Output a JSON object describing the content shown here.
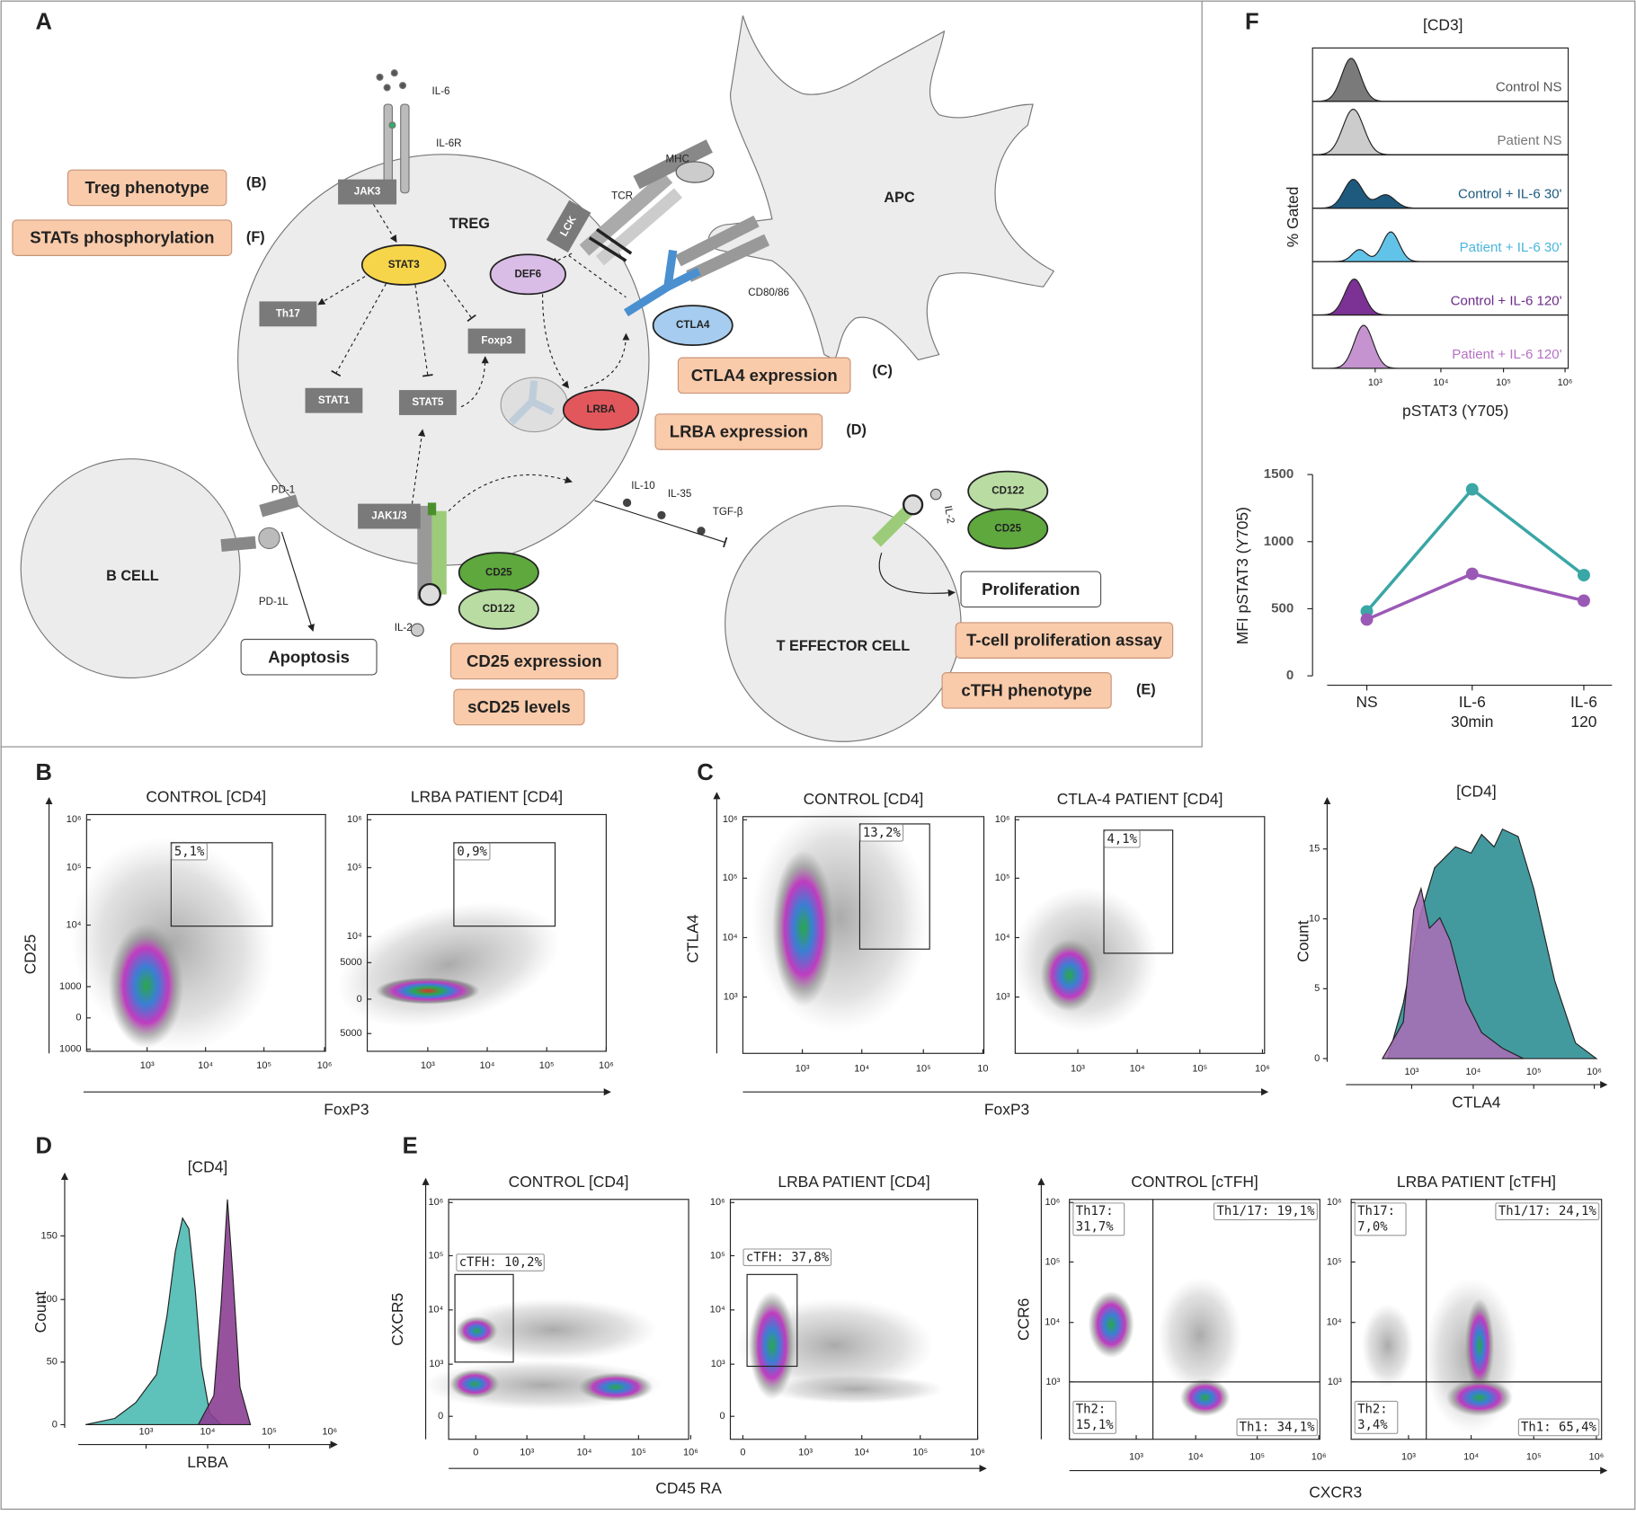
{
  "panels": {
    "A": {
      "label": "A",
      "cells": [
        "TREG",
        "APC",
        "B CELL",
        "T EFFECTOR CELL"
      ],
      "molecules": [
        "IL-6",
        "IL-6R",
        "JAK3",
        "STAT3",
        "Th17",
        "Foxp3",
        "STAT1",
        "STAT5",
        "JAK1/3",
        "LCK",
        "DEF6",
        "MHC",
        "TCR",
        "CD80/86",
        "CTLA4",
        "LRBA",
        "CD25",
        "CD122",
        "IL-2",
        "PD-1",
        "PD-1L",
        "IL-10",
        "IL-35",
        "TGF-β",
        "CD122",
        "CD25",
        "IL-2"
      ],
      "assays": [
        {
          "text": "Treg phenotype",
          "ref": "(B)"
        },
        {
          "text": "STATs phosphorylation",
          "ref": "(F)"
        },
        {
          "text": "CTLA4 expression",
          "ref": "(C)"
        },
        {
          "text": "LRBA expression",
          "ref": "(D)"
        },
        {
          "text": "CD25 expression"
        },
        {
          "text": "sCD25 levels"
        },
        {
          "text": "T-cell proliferation assay"
        },
        {
          "text": "cTFH phenotype",
          "ref": "(E)"
        }
      ],
      "outcomes": [
        "Apoptosis",
        "Proliferation"
      ]
    },
    "B": {
      "label": "B",
      "ylabel": "CD25",
      "xlabel": "FoxP3",
      "plots": [
        {
          "title": "CONTROL [CD4]",
          "yticks": [
            "10⁶",
            "10⁵",
            "10⁴",
            1000,
            0,
            1000
          ],
          "xticks": [
            "10³",
            "10⁴",
            "10⁵",
            "10⁶"
          ],
          "gates": [
            "5,1%"
          ]
        },
        {
          "title": "LRBA PATIENT [CD4]",
          "yticks": [
            "10⁶",
            "10⁵",
            "10⁴",
            5000,
            0,
            5000
          ],
          "xticks": [
            "10³",
            "10⁴",
            "10⁵",
            "10⁶"
          ],
          "gates": [
            "0,9%"
          ]
        }
      ]
    },
    "C": {
      "label": "C",
      "ylabel": "CTLA4",
      "xlabel": "FoxP3",
      "plots": [
        {
          "title": "CONTROL [CD4]",
          "yticks": [
            "10⁶",
            "10⁵",
            "10⁴",
            "10³"
          ],
          "xticks": [
            "10³",
            "10⁴",
            "10⁵",
            10
          ],
          "gates": [
            "13,2%"
          ]
        },
        {
          "title": "CTLA-4 PATIENT [CD4]",
          "yticks": [
            "10⁶",
            "10⁵",
            "10⁴",
            "10³"
          ],
          "xticks": [
            "10³",
            "10⁴",
            "10⁵",
            "10⁶"
          ],
          "gates": [
            "4,1%"
          ]
        }
      ],
      "histogram": {
        "title": "[CD4]",
        "yticks": [
          0,
          5,
          10,
          15
        ],
        "xticks": [
          "10³",
          "10⁴",
          "10⁵",
          "10⁶"
        ],
        "ylabel": "Count",
        "xlabel": "CTLA4",
        "colors": [
          "#2d8f95",
          "#a66fb5"
        ]
      }
    },
    "D": {
      "label": "D",
      "histogram": {
        "title": "[CD4]",
        "yticks": [
          0,
          50,
          100,
          150
        ],
        "xticks": [
          "10³",
          "10⁴",
          "10⁵",
          "10⁶"
        ],
        "ylabel": "Count",
        "xlabel": "LRBA",
        "colors": [
          "#4dbab2",
          "#8c3f93"
        ]
      }
    },
    "E": {
      "label": "E",
      "groups": [
        {
          "ylabel": "CXCR5",
          "xlabel": "CD45 RA",
          "plots": [
            {
              "title": "CONTROL [CD4]",
              "yticks": [
                "10⁶",
                "10⁵",
                "10⁴",
                "10³",
                0
              ],
              "xticks": [
                0,
                "10³",
                "10⁴",
                "10⁵",
                "10⁶"
              ],
              "gates": [
                "cTFH: 10,2%"
              ]
            },
            {
              "title": "LRBA PATIENT [CD4]",
              "yticks": [
                "10⁶",
                "10⁵",
                "10⁴",
                "10³",
                0
              ],
              "xticks": [
                0,
                "10³",
                "10⁴",
                "10⁵",
                "10⁶"
              ],
              "gates": [
                "cTFH: 37,8%"
              ]
            }
          ]
        },
        {
          "ylabel": "CCR6",
          "xlabel": "CXCR3",
          "plots": [
            {
              "title": "CONTROL [cTFH]",
              "yticks": [
                "10⁶",
                "10⁵",
                "10⁴",
                "10³"
              ],
              "xticks": [
                "10³",
                "10⁴",
                "10⁵",
                "10⁶"
              ],
              "quadrants": [
                "Th17: 31,7%",
                "Th1/17: 19,1%",
                "Th2: 15,1%",
                "Th1: 34,1%"
              ]
            },
            {
              "title": "LRBA PATIENT [cTFH]",
              "yticks": [
                "10⁶",
                "10⁵",
                "10⁴",
                "10³"
              ],
              "xticks": [
                "10³",
                "10⁴",
                "10⁵",
                "10⁶"
              ],
              "quadrants": [
                "Th17: 7,0%",
                "Th1/17: 24,1%",
                "Th2: 3,4%",
                "Th1: 65,4%"
              ]
            }
          ]
        }
      ]
    },
    "F": {
      "label": "F",
      "title": "[CD3]",
      "ylabel": "% Gated",
      "xlabel": "pSTAT3 (Y705)",
      "xticks": [
        "10³",
        "10⁴",
        "10⁵",
        "10⁶"
      ],
      "rows": [
        {
          "label": "Control NS",
          "color": "#555555",
          "fill": "#7a7a7a"
        },
        {
          "label": "Patient  NS",
          "color": "#777777",
          "fill": "#cccccc"
        },
        {
          "label": "Control + IL-6 30'",
          "color": "#1d5a7e",
          "fill": "#1d5a7e"
        },
        {
          "label": "Patient + IL-6 30'",
          "color": "#49b5dd",
          "fill": "#62c3e8"
        },
        {
          "label": "Control + IL-6 120'",
          "color": "#6d2b8a",
          "fill": "#7b3294"
        },
        {
          "label": "Patient + IL-6 120'",
          "color": "#b670c4",
          "fill": "#c594d0"
        }
      ]
    }
  },
  "chart_data": {
    "type": "line",
    "ylabel": "MFI pSTAT3 (Y705)",
    "categories": [
      "NS",
      "IL-6 30min",
      "IL-6 120 min"
    ],
    "series": [
      {
        "color": "#3aa6a6",
        "values": [
          480,
          1390,
          750
        ]
      },
      {
        "color": "#9b59b6",
        "values": [
          420,
          760,
          560
        ]
      }
    ],
    "ylim": [
      0,
      1500
    ],
    "yticks": [
      0,
      500,
      1000,
      1500
    ]
  }
}
